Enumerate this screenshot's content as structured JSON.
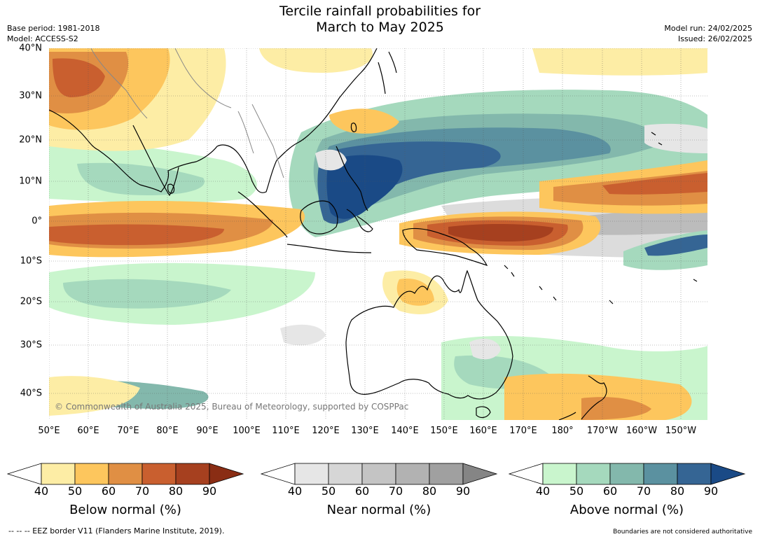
{
  "title_line1": "Tercile rainfall probabilities for",
  "title_line2": "March to May 2025",
  "base_period": "Base period: 1981-2018",
  "model": "Model: ACCESS-S2",
  "model_run": "Model run: 24/02/2025",
  "issued": "Issued: 26/02/2025",
  "lat_labels": [
    "40°N",
    "30°N",
    "20°N",
    "10°N",
    "0°",
    "10°S",
    "20°S",
    "30°S",
    "40°S"
  ],
  "lon_labels": [
    "50°E",
    "60°E",
    "70°E",
    "80°E",
    "90°E",
    "100°E",
    "110°E",
    "120°E",
    "130°E",
    "140°E",
    "150°E",
    "160°E",
    "170°E",
    "180°",
    "170°W",
    "160°W",
    "150°W"
  ],
  "copyright": "© Commonwealth of Australia 2025, Bureau of Meteorology, supported by COSPPac",
  "colorbars": {
    "below": {
      "title": "Below normal (%)",
      "ticks": [
        "40",
        "50",
        "60",
        "70",
        "80",
        "90"
      ],
      "colors": [
        "#ffffff",
        "#fdeda5",
        "#fdc65d",
        "#e08f44",
        "#c95f2f",
        "#a6401f",
        "#8a2d14"
      ]
    },
    "near": {
      "title": "Near normal (%)",
      "ticks": [
        "40",
        "50",
        "60",
        "70",
        "80",
        "90"
      ],
      "colors": [
        "#ffffff",
        "#e6e6e6",
        "#d6d6d6",
        "#c4c4c4",
        "#b2b2b2",
        "#a0a0a0",
        "#858585"
      ]
    },
    "above": {
      "title": "Above normal (%)",
      "ticks": [
        "40",
        "50",
        "60",
        "70",
        "80",
        "90"
      ],
      "colors": [
        "#ffffff",
        "#c9f5cd",
        "#a5d9bd",
        "#83b8ac",
        "#5b91a0",
        "#356594",
        "#1a4a86"
      ]
    }
  },
  "footer_left": "--  --  -- EEZ border V11 (Flanders Marine Institute, 2019).",
  "footer_right": "Boundaries are not considered authoritative"
}
